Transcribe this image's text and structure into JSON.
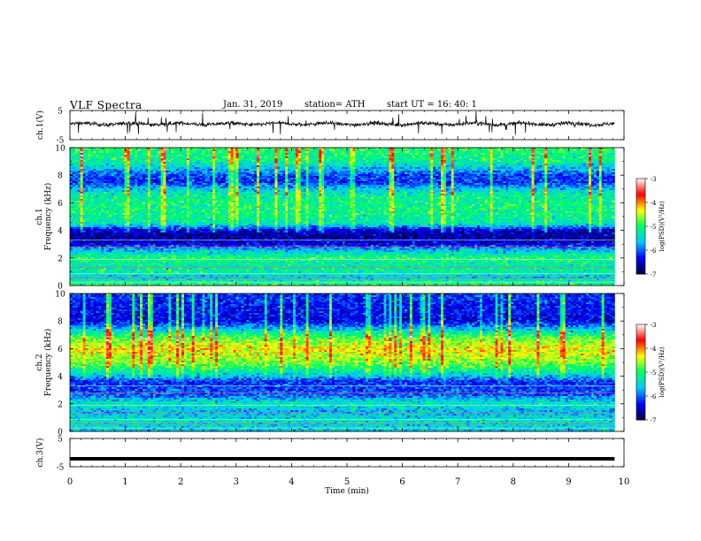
{
  "header": {
    "title": "VLF  Spectra",
    "date": "Jan. 31, 2019",
    "station": "station= ATH",
    "start": "start  UT  =   16: 40: 1"
  },
  "colors": {
    "colormap": [
      "#000040",
      "#0000ff",
      "#00c8ff",
      "#00ff60",
      "#ffff00",
      "#ff0000",
      "#ffffff"
    ],
    "trace": "#000000"
  },
  "chart_data": [
    {
      "type": "line",
      "id": "ch1-waveform",
      "ylabel": "ch.1(V)",
      "ylim": [
        -5,
        5
      ],
      "yticks": [
        "5",
        "-5"
      ],
      "xlim": [
        0,
        10
      ],
      "series": [
        {
          "values_description_free": true,
          "mean": 0.4,
          "spread": 1.2
        }
      ]
    },
    {
      "type": "heatmap",
      "id": "ch1-spectrogram",
      "ylabel": "ch.1\nFrequency  (kHz)",
      "ylim": [
        0,
        10
      ],
      "yticks": [
        "0",
        "2",
        "4",
        "6",
        "8",
        "10"
      ],
      "xlim": [
        0,
        9.83
      ],
      "colorbar": {
        "label": "log(PSD)(V²/Hz)",
        "ticks": [
          "-3",
          "-4",
          "-5",
          "-6",
          "-7"
        ],
        "range": [
          -7,
          -3
        ]
      },
      "profile_khz": [
        [
          0.0,
          -4.9
        ],
        [
          0.6,
          -5.6
        ],
        [
          1.0,
          -5.2
        ],
        [
          1.5,
          -5.3
        ],
        [
          2.0,
          -5.0
        ],
        [
          2.6,
          -5.7
        ],
        [
          3.0,
          -6.4
        ],
        [
          3.5,
          -6.7
        ],
        [
          4.0,
          -6.5
        ],
        [
          4.5,
          -5.3
        ],
        [
          5.5,
          -5.1
        ],
        [
          6.5,
          -5.2
        ],
        [
          7.0,
          -5.6
        ],
        [
          7.5,
          -6.2
        ],
        [
          8.0,
          -6.1
        ],
        [
          9.0,
          -5.2
        ],
        [
          10.0,
          -5.0
        ]
      ]
    },
    {
      "type": "heatmap",
      "id": "ch2-spectrogram",
      "ylabel": "ch.2\nFrequency  (kHz)",
      "ylim": [
        0,
        10
      ],
      "yticks": [
        "0",
        "2",
        "4",
        "6",
        "8",
        "10"
      ],
      "xlim": [
        0,
        9.83
      ],
      "colorbar": {
        "label": "log(PSD)(V²/Hz)",
        "ticks": [
          "-3",
          "-4",
          "-5",
          "-6",
          "-7"
        ],
        "range": [
          -7,
          -3
        ]
      },
      "profile_khz": [
        [
          0.0,
          -5.6
        ],
        [
          0.8,
          -5.4
        ],
        [
          1.5,
          -5.7
        ],
        [
          2.0,
          -5.3
        ],
        [
          2.6,
          -6.0
        ],
        [
          3.0,
          -6.1
        ],
        [
          3.6,
          -6.2
        ],
        [
          4.2,
          -5.4
        ],
        [
          5.0,
          -4.7
        ],
        [
          6.0,
          -4.3
        ],
        [
          6.8,
          -4.8
        ],
        [
          7.4,
          -5.6
        ],
        [
          8.0,
          -6.4
        ],
        [
          9.0,
          -6.3
        ],
        [
          10.0,
          -6.2
        ]
      ]
    },
    {
      "type": "line",
      "id": "ch3-waveform",
      "ylabel": "ch.3(V)",
      "ylim": [
        -5,
        5
      ],
      "yticks": [
        "5",
        "-5"
      ],
      "xlim": [
        0,
        10
      ],
      "series": [
        {
          "mean": -2.2,
          "spread": 0.1
        }
      ]
    }
  ],
  "xaxis": {
    "label": "Time  (min)",
    "ticks": [
      "0",
      "1",
      "2",
      "3",
      "4",
      "5",
      "6",
      "7",
      "8",
      "9",
      "10"
    ],
    "range": [
      0,
      10
    ]
  }
}
